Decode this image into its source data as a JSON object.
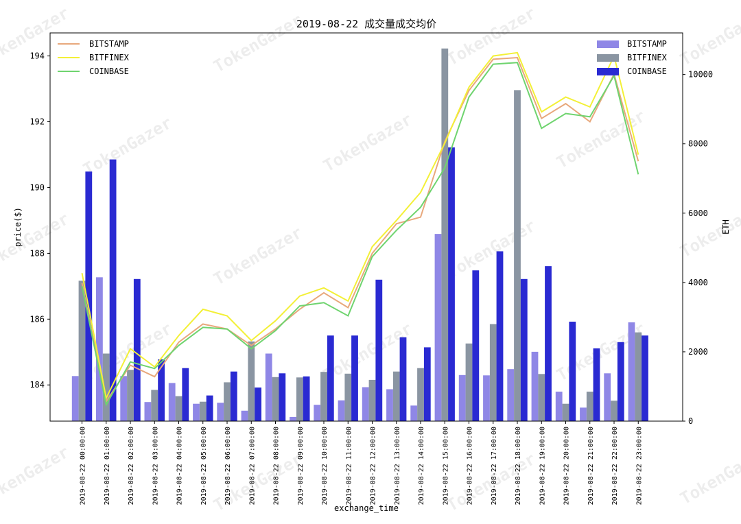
{
  "chart_data": {
    "type": "bar+line",
    "title": "2019-08-22 成交量成交均价",
    "xlabel": "exchange_time",
    "ylabel_left": "price($)",
    "ylabel_right": "ETH",
    "ylim_left": [
      182.9,
      194.7
    ],
    "ylim_right": [
      0,
      11200
    ],
    "yticks_left": [
      184,
      186,
      188,
      190,
      192,
      194
    ],
    "yticks_right": [
      0,
      2000,
      4000,
      6000,
      8000,
      10000
    ],
    "grid": false,
    "categories": [
      "2019-08-22 00:00:00",
      "2019-08-22 01:00:00",
      "2019-08-22 02:00:00",
      "2019-08-22 03:00:00",
      "2019-08-22 04:00:00",
      "2019-08-22 05:00:00",
      "2019-08-22 06:00:00",
      "2019-08-22 07:00:00",
      "2019-08-22 08:00:00",
      "2019-08-22 09:00:00",
      "2019-08-22 10:00:00",
      "2019-08-22 11:00:00",
      "2019-08-22 12:00:00",
      "2019-08-22 13:00:00",
      "2019-08-22 14:00:00",
      "2019-08-22 15:00:00",
      "2019-08-22 16:00:00",
      "2019-08-22 17:00:00",
      "2019-08-22 18:00:00",
      "2019-08-22 19:00:00",
      "2019-08-22 20:00:00",
      "2019-08-22 21:00:00",
      "2019-08-22 22:00:00",
      "2019-08-22 23:00:00"
    ],
    "line_legend_position": "upper-left",
    "bar_legend_position": "upper-right",
    "price_series": [
      {
        "name": "BITSTAMP",
        "color": "#e8a87c",
        "values": [
          187.1,
          183.5,
          184.6,
          184.25,
          185.3,
          185.85,
          185.7,
          185.2,
          185.7,
          186.3,
          186.8,
          186.35,
          188.0,
          188.9,
          189.1,
          191.4,
          192.95,
          193.9,
          193.95,
          192.1,
          192.55,
          192.0,
          193.45,
          190.8
        ]
      },
      {
        "name": "BITFINEX",
        "color": "#f3f037",
        "values": [
          187.4,
          183.6,
          185.1,
          184.55,
          185.5,
          186.3,
          186.1,
          185.35,
          185.95,
          186.7,
          186.95,
          186.55,
          188.2,
          189.0,
          189.85,
          191.35,
          193.05,
          194.0,
          194.1,
          192.3,
          192.75,
          192.45,
          194.0,
          191.0
        ]
      },
      {
        "name": "COINBASE",
        "color": "#6fd46f",
        "values": [
          187.0,
          183.4,
          184.7,
          184.5,
          185.2,
          185.75,
          185.7,
          185.1,
          185.65,
          186.4,
          186.5,
          186.1,
          187.9,
          188.7,
          189.4,
          190.6,
          192.75,
          193.75,
          193.8,
          191.8,
          192.25,
          192.15,
          193.4,
          190.4
        ]
      }
    ],
    "volume_series": [
      {
        "name": "BITSTAMP",
        "color": "#8f87e6",
        "values": [
          1300,
          4150,
          1300,
          550,
          1100,
          500,
          530,
          300,
          1950,
          120,
          470,
          600,
          980,
          920,
          450,
          5400,
          1330,
          1320,
          1500,
          2000,
          850,
          390,
          1380,
          2850
        ]
      },
      {
        "name": "BITFINEX",
        "color": "#8a95a2",
        "values": [
          4050,
          1950,
          1480,
          900,
          720,
          560,
          1120,
          2300,
          1270,
          1260,
          1420,
          1370,
          1190,
          1430,
          1530,
          10750,
          2240,
          2800,
          9550,
          1360,
          500,
          850,
          590,
          2560
        ]
      },
      {
        "name": "COINBASE",
        "color": "#2a2ad2",
        "values": [
          7200,
          7550,
          4100,
          1780,
          1530,
          740,
          1430,
          970,
          1380,
          1290,
          2470,
          2470,
          4080,
          2420,
          2130,
          7900,
          4350,
          4900,
          4100,
          4470,
          2870,
          2100,
          2280,
          2470
        ]
      }
    ]
  }
}
